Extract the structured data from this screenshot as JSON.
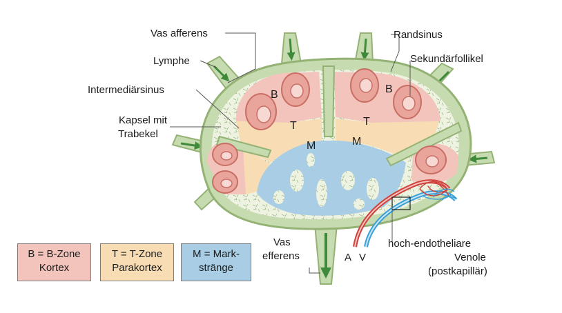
{
  "labels": {
    "vas_afferens": "Vas afferens",
    "lymphe": "Lymphe",
    "intermediaersinus": "Intermediärsinus",
    "kapsel_line1": "Kapsel mit",
    "kapsel_line2": "Trabekel",
    "randsinus": "Randsinus",
    "sekundaerfollikel": "Sekundärfollikel",
    "vas_efferens_line1": "Vas",
    "vas_efferens_line2": "efferens",
    "hev_line1": "hoch-endotheliare",
    "hev_line2": "Venole",
    "hev_line3": "(postkapillär)",
    "artery": "A",
    "vein": "V"
  },
  "zones": {
    "b": "B",
    "t": "T",
    "m": "M"
  },
  "legend": [
    {
      "line1": "B = B-Zone",
      "line2": "Kortex",
      "color": "#f2c4bc"
    },
    {
      "line1": "T = T-Zone",
      "line2": "Parakortex",
      "color": "#f7dcb4"
    },
    {
      "line1": "M = Mark-",
      "line2": "stränge",
      "color": "#a9cde4"
    }
  ],
  "colors": {
    "capsule": "#c7dbb0",
    "capsule_stroke": "#93b274",
    "sinus": "#eef2e0",
    "b_zone": "#f2c4bc",
    "t_zone": "#f7dcb4",
    "m_zone": "#a9cde4",
    "arrow": "#3e8a3a",
    "artery": "#d0423c",
    "vein": "#3aa0d8"
  }
}
